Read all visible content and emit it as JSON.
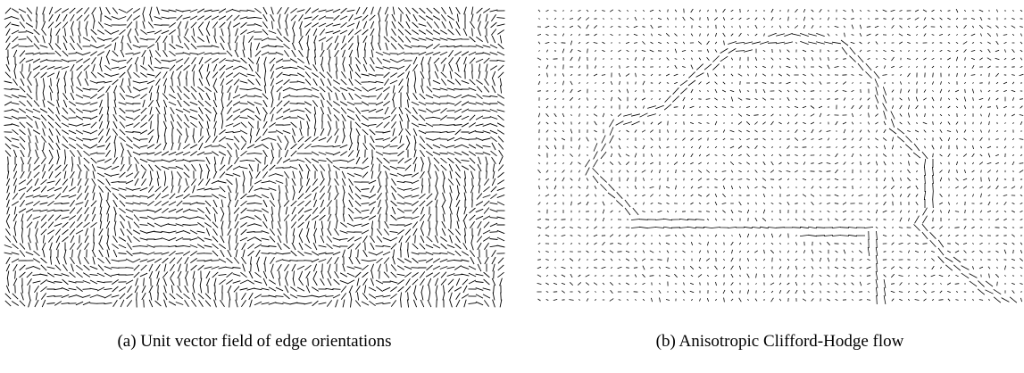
{
  "figures": [
    {
      "caption": "(a) Unit vector field of edge orientations"
    },
    {
      "caption": "(b) Anisotropic Clifford-Hodge flow"
    }
  ]
}
